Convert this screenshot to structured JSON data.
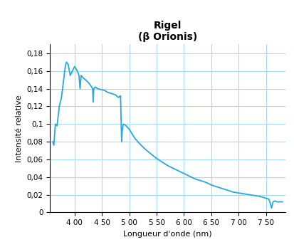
{
  "chart_data": {
    "type": "line",
    "title": "Rigel\n(β Orionis)",
    "x_label": "Longueur d'onde (nm)",
    "y_label": "Intensité relative",
    "x": [
      360,
      362,
      365,
      368,
      372,
      376,
      380,
      383,
      385,
      388,
      392,
      396,
      400,
      405,
      408,
      410,
      412,
      416,
      420,
      425,
      430,
      433,
      434,
      435,
      438,
      442,
      448,
      455,
      460,
      465,
      470,
      475,
      480,
      484,
      486,
      487,
      489,
      492,
      496,
      500,
      505,
      510,
      520,
      530,
      540,
      550,
      560,
      570,
      580,
      590,
      600,
      610,
      620,
      630,
      640,
      650,
      660,
      670,
      680,
      690,
      700,
      710,
      720,
      730,
      740,
      750,
      755,
      758,
      760,
      763,
      766,
      770,
      775,
      780
    ],
    "values": [
      0.08,
      0.076,
      0.1,
      0.098,
      0.12,
      0.13,
      0.15,
      0.165,
      0.17,
      0.168,
      0.155,
      0.16,
      0.165,
      0.16,
      0.155,
      0.14,
      0.155,
      0.152,
      0.15,
      0.147,
      0.143,
      0.14,
      0.125,
      0.14,
      0.142,
      0.14,
      0.139,
      0.138,
      0.136,
      0.135,
      0.134,
      0.133,
      0.13,
      0.132,
      0.08,
      0.092,
      0.1,
      0.099,
      0.097,
      0.094,
      0.089,
      0.084,
      0.077,
      0.071,
      0.066,
      0.061,
      0.057,
      0.053,
      0.05,
      0.047,
      0.044,
      0.041,
      0.038,
      0.036,
      0.034,
      0.031,
      0.029,
      0.027,
      0.025,
      0.023,
      0.022,
      0.021,
      0.02,
      0.019,
      0.018,
      0.016,
      0.015,
      0.01,
      0.005,
      0.012,
      0.013,
      0.012,
      0.012,
      0.012
    ],
    "color": "#2aa6df",
    "xlim": [
      355,
      785
    ],
    "ylim": [
      0,
      0.19
    ],
    "xticks": [
      {
        "value": 400,
        "label": "4 00"
      },
      {
        "value": 450,
        "label": "4 50"
      },
      {
        "value": 500,
        "label": "5 00"
      },
      {
        "value": 550,
        "label": "5 50"
      },
      {
        "value": 600,
        "label": "6 00"
      },
      {
        "value": 650,
        "label": "6 50"
      },
      {
        "value": 700,
        "label": "7 00"
      },
      {
        "value": 750,
        "label": "7 50"
      }
    ],
    "yticks": [
      0,
      {
        "value": 0.02,
        "label": "0,02"
      },
      {
        "value": 0.04,
        "label": "0,04"
      },
      {
        "value": 0.06,
        "label": "0,06"
      },
      {
        "value": 0.08,
        "label": "0,08"
      },
      {
        "value": 0.1,
        "label": "0,1"
      },
      {
        "value": 0.12,
        "label": "0,12"
      },
      {
        "value": 0.14,
        "label": "0,14"
      },
      {
        "value": 0.16,
        "label": "0,16"
      },
      {
        "value": 0.18,
        "label": "0,18"
      }
    ],
    "grid": true
  }
}
